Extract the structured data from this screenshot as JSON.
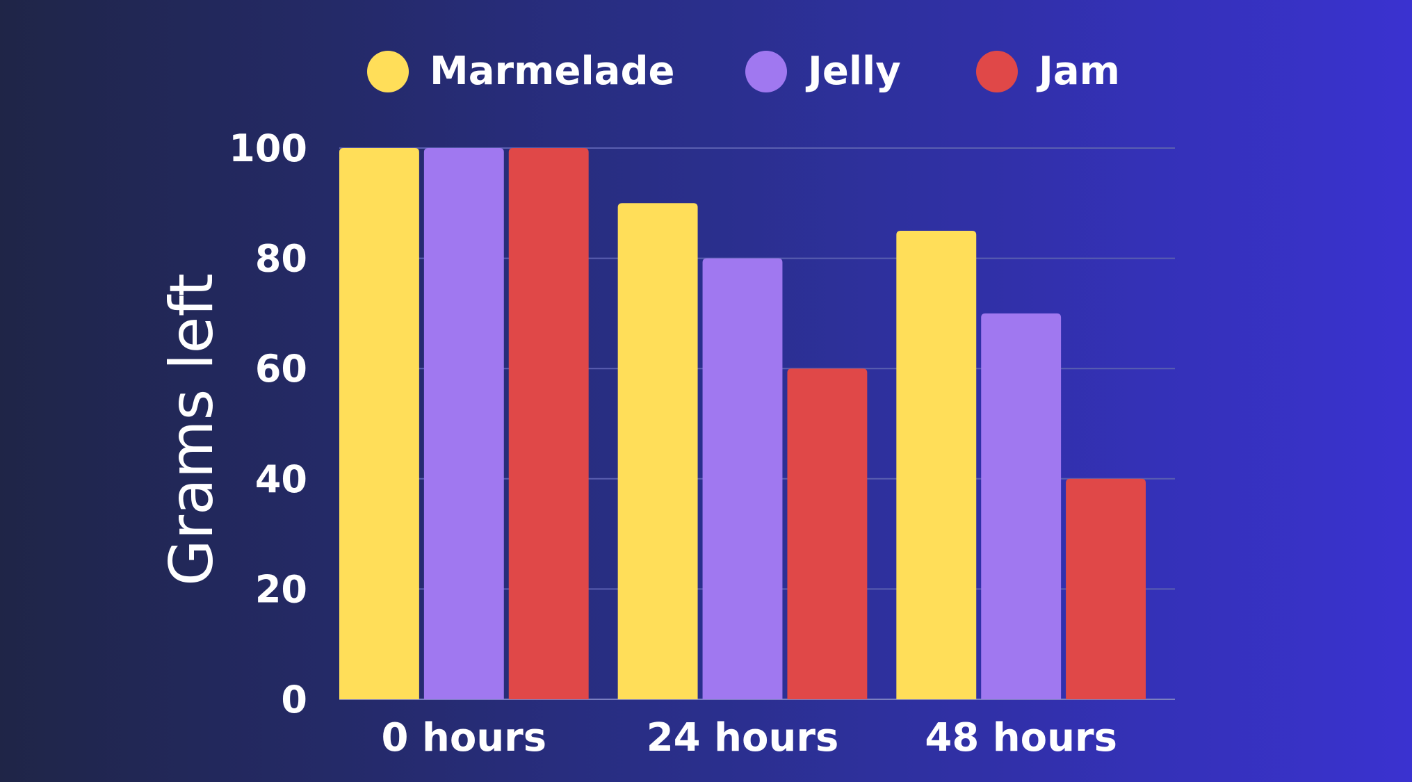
{
  "colors": {
    "background_left": "#1f2547",
    "background_mid": "#2a2f8c",
    "background_right": "#3a32d0",
    "gridline": "#5a5fb0",
    "baseline": "#7a7fc0",
    "text": "#ffffff"
  },
  "chart_data": {
    "type": "bar",
    "title": "",
    "xlabel": "",
    "ylabel": "Grams left",
    "ylim": [
      0,
      100
    ],
    "yticks": [
      0,
      20,
      40,
      60,
      80,
      100
    ],
    "grid": true,
    "legend_position": "top",
    "categories": [
      "0 hours",
      "24 hours",
      "48 hours"
    ],
    "series": [
      {
        "name": "Marmelade",
        "color": "#ffde59",
        "values": [
          100,
          90,
          85
        ]
      },
      {
        "name": "Jelly",
        "color": "#a078f0",
        "values": [
          100,
          80,
          70
        ]
      },
      {
        "name": "Jam",
        "color": "#e04848",
        "values": [
          100,
          60,
          40
        ]
      }
    ]
  }
}
